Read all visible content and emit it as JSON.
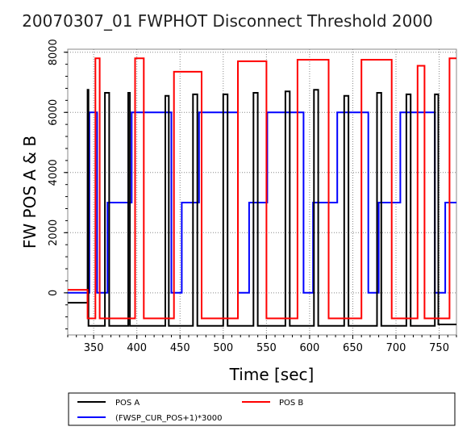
{
  "chart_data": {
    "type": "line",
    "title": "20070307_01 FWPHOT Disconnect Threshold 2000",
    "xlabel": "Time [sec]",
    "ylabel": "FW POS A & B",
    "xlim": [
      320,
      770
    ],
    "ylim": [
      -1400,
      8100
    ],
    "x_ticks": [
      350,
      400,
      450,
      500,
      550,
      600,
      650,
      700,
      750
    ],
    "y_ticks": [
      0,
      2000,
      4000,
      6000,
      8000
    ],
    "grid": true,
    "legend_position": "bottom",
    "series": [
      {
        "name": "POS A",
        "color": "#000000",
        "points": [
          [
            320,
            -330
          ],
          [
            343,
            -330
          ],
          [
            343,
            6750
          ],
          [
            344,
            6750
          ],
          [
            344,
            -1100
          ],
          [
            363,
            -1100
          ],
          [
            363,
            6650
          ],
          [
            368,
            6650
          ],
          [
            368,
            -1100
          ],
          [
            390,
            -1100
          ],
          [
            390,
            6650
          ],
          [
            392,
            6650
          ],
          [
            392,
            -1100
          ],
          [
            433,
            -1100
          ],
          [
            433,
            6550
          ],
          [
            437,
            6550
          ],
          [
            437,
            -1100
          ],
          [
            465,
            -1100
          ],
          [
            465,
            6600
          ],
          [
            470,
            6600
          ],
          [
            470,
            -1100
          ],
          [
            500,
            -1100
          ],
          [
            500,
            6600
          ],
          [
            505,
            6600
          ],
          [
            505,
            -1100
          ],
          [
            535,
            -1100
          ],
          [
            535,
            6650
          ],
          [
            540,
            6650
          ],
          [
            540,
            -1100
          ],
          [
            572,
            -1100
          ],
          [
            572,
            6700
          ],
          [
            577,
            6700
          ],
          [
            577,
            -1100
          ],
          [
            605,
            -1100
          ],
          [
            605,
            6750
          ],
          [
            610,
            6750
          ],
          [
            610,
            -1100
          ],
          [
            640,
            -1100
          ],
          [
            640,
            6550
          ],
          [
            645,
            6550
          ],
          [
            645,
            -1100
          ],
          [
            678,
            -1100
          ],
          [
            678,
            6650
          ],
          [
            683,
            6650
          ],
          [
            683,
            -1100
          ],
          [
            712,
            -1100
          ],
          [
            712,
            6600
          ],
          [
            717,
            6600
          ],
          [
            717,
            -1100
          ],
          [
            745,
            -1100
          ],
          [
            745,
            6600
          ],
          [
            749,
            6600
          ],
          [
            749,
            -1050
          ],
          [
            770,
            -1050
          ]
        ]
      },
      {
        "name": "POS B",
        "color": "#ff0000",
        "points": [
          [
            320,
            100
          ],
          [
            343,
            100
          ],
          [
            343,
            -850
          ],
          [
            352,
            -850
          ],
          [
            352,
            7800
          ],
          [
            357,
            7800
          ],
          [
            357,
            -850
          ],
          [
            398,
            -850
          ],
          [
            398,
            7800
          ],
          [
            408,
            7800
          ],
          [
            408,
            -850
          ],
          [
            443,
            -850
          ],
          [
            443,
            7350
          ],
          [
            475,
            7350
          ],
          [
            475,
            -850
          ],
          [
            517,
            -850
          ],
          [
            517,
            7700
          ],
          [
            550,
            7700
          ],
          [
            550,
            -850
          ],
          [
            586,
            -850
          ],
          [
            586,
            7750
          ],
          [
            622,
            7750
          ],
          [
            622,
            -850
          ],
          [
            660,
            -850
          ],
          [
            660,
            7750
          ],
          [
            695,
            7750
          ],
          [
            695,
            -850
          ],
          [
            725,
            -850
          ],
          [
            725,
            7550
          ],
          [
            733,
            7550
          ],
          [
            733,
            -850
          ],
          [
            762,
            -850
          ],
          [
            762,
            7800
          ],
          [
            770,
            7800
          ]
        ]
      },
      {
        "name": "(FWSP_CUR_POS+1)*3000",
        "color": "#0000ff",
        "points": [
          [
            320,
            0
          ],
          [
            345,
            0
          ],
          [
            345,
            6000
          ],
          [
            354,
            6000
          ],
          [
            354,
            0
          ],
          [
            366,
            0
          ],
          [
            366,
            3000
          ],
          [
            394,
            3000
          ],
          [
            394,
            6000
          ],
          [
            440,
            6000
          ],
          [
            440,
            0
          ],
          [
            452,
            0
          ],
          [
            452,
            3000
          ],
          [
            472,
            3000
          ],
          [
            472,
            6000
          ],
          [
            517,
            6000
          ],
          [
            517,
            0
          ],
          [
            530,
            0
          ],
          [
            530,
            3000
          ],
          [
            551,
            3000
          ],
          [
            551,
            6000
          ],
          [
            593,
            6000
          ],
          [
            593,
            0
          ],
          [
            604,
            0
          ],
          [
            604,
            3000
          ],
          [
            632,
            3000
          ],
          [
            632,
            6000
          ],
          [
            668,
            6000
          ],
          [
            668,
            0
          ],
          [
            680,
            0
          ],
          [
            680,
            3000
          ],
          [
            705,
            3000
          ],
          [
            705,
            6000
          ],
          [
            745,
            6000
          ],
          [
            745,
            0
          ],
          [
            757,
            0
          ],
          [
            757,
            3000
          ],
          [
            770,
            3000
          ]
        ]
      }
    ]
  }
}
